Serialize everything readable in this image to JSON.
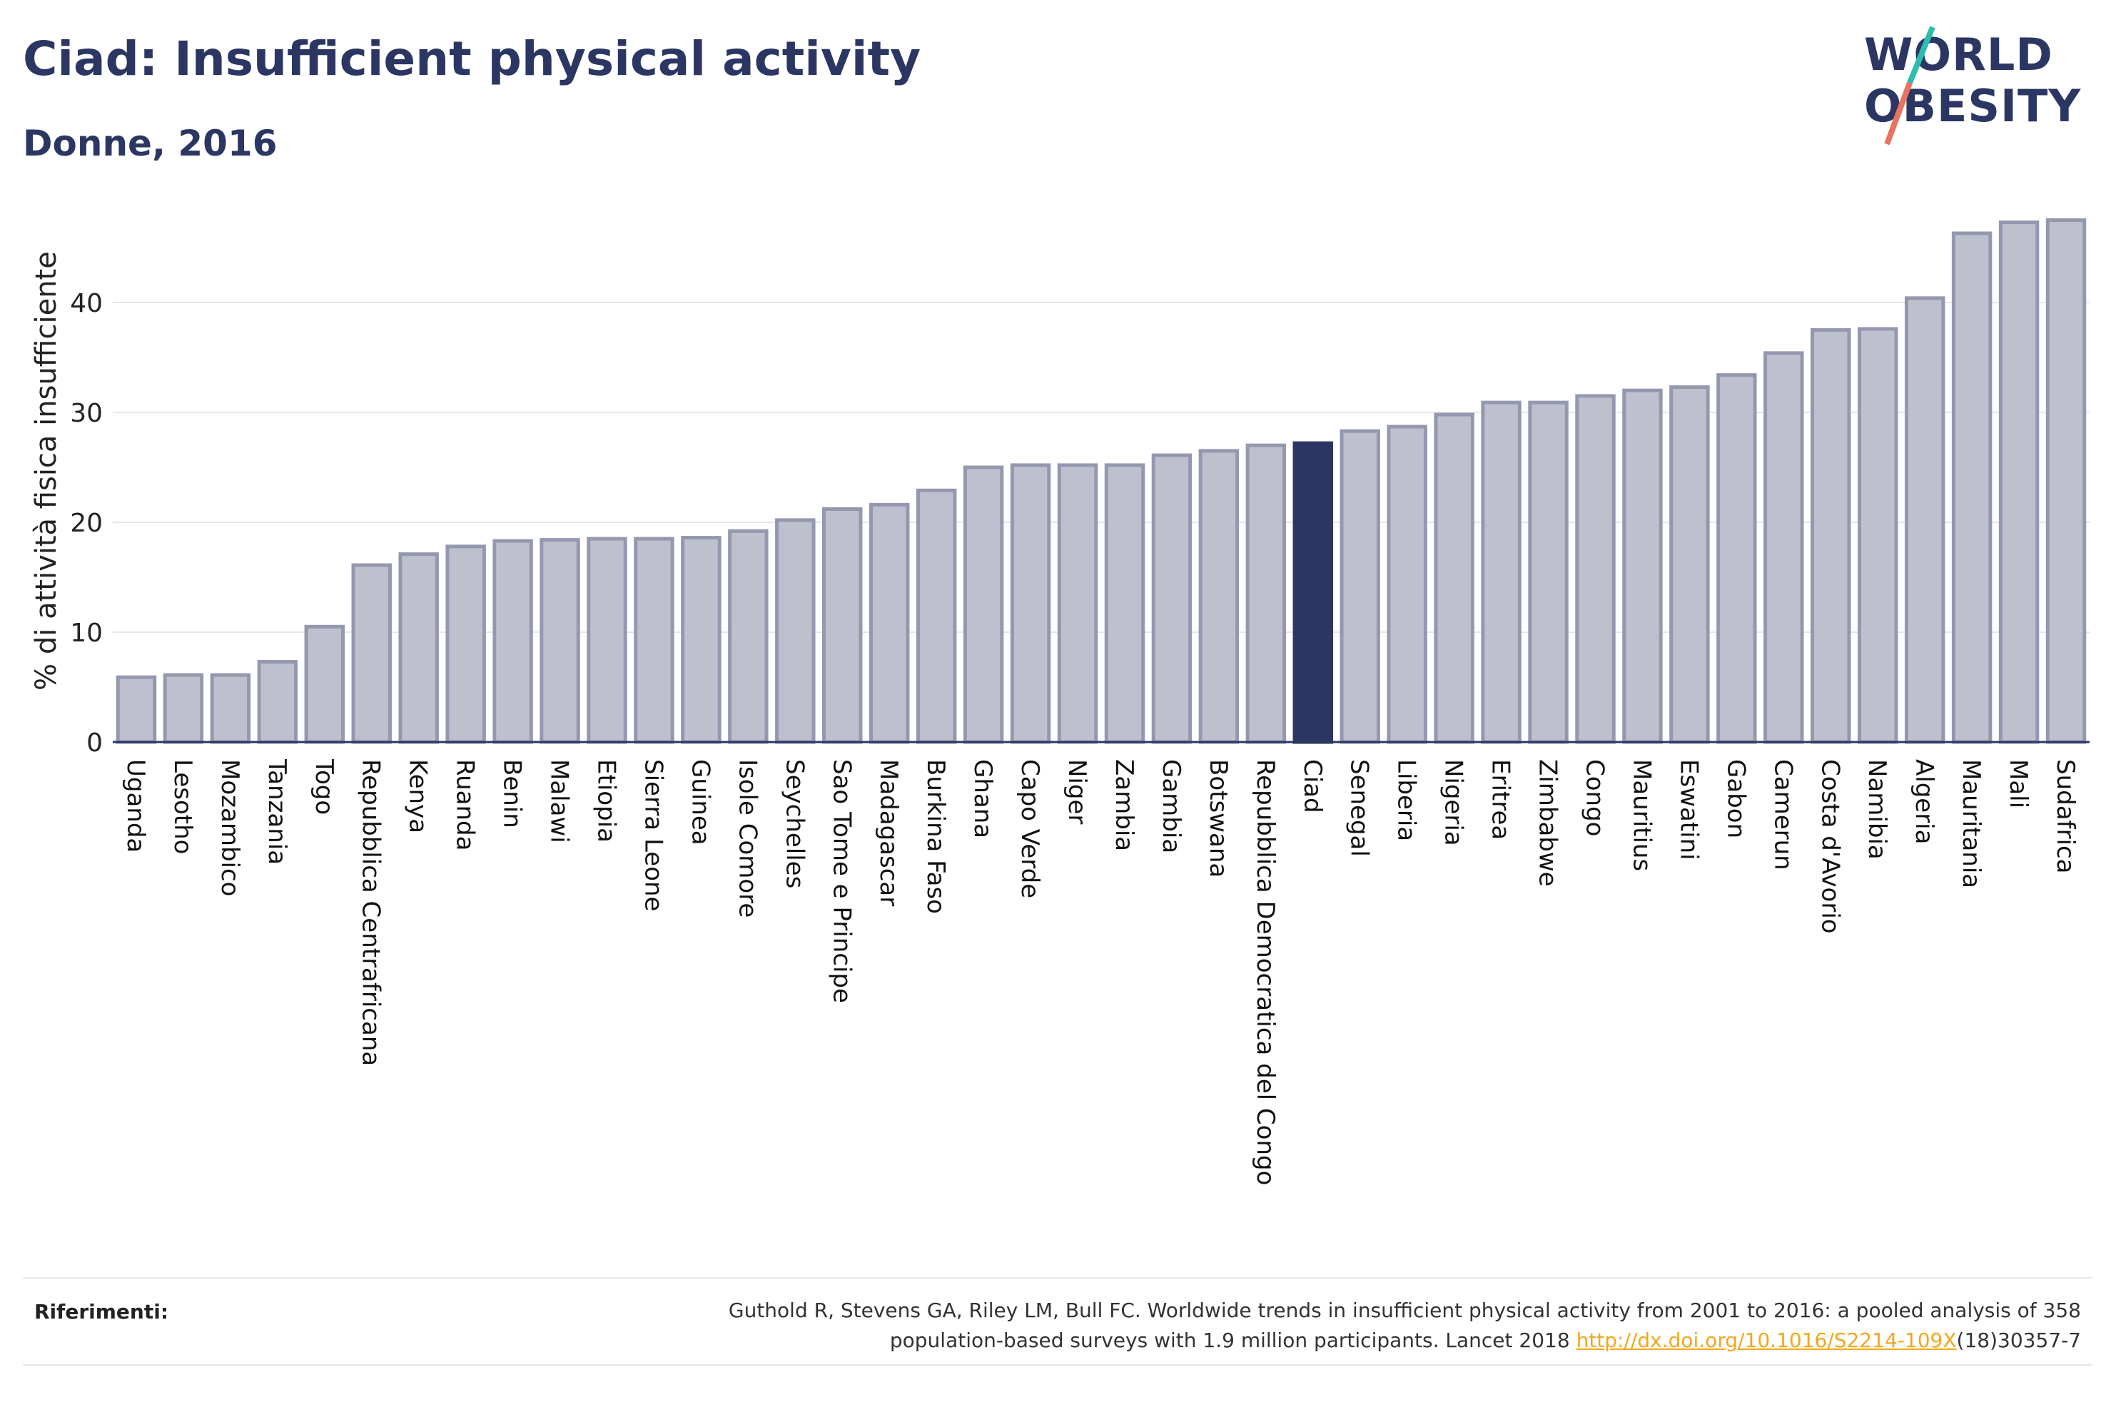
{
  "title": "Ciad: Insufficient physical activity",
  "subtitle": "Donne, 2016",
  "logo": {
    "line1": "WORLD",
    "line2": "OBESITY",
    "text_color": "#2b3663",
    "slash_top_color": "#2ebbb0",
    "slash_bottom_color": "#e8735f"
  },
  "colors": {
    "bar": "#bec1cd",
    "bar_stroke": "#9498af",
    "highlight": "#2b3663",
    "grid": "#e6e6ea",
    "axis": "#2b3663"
  },
  "chart_data": {
    "type": "bar",
    "title": "Ciad: Insufficient physical activity",
    "subtitle": "Donne, 2016",
    "ylabel": "% di attività fisica insufficiente",
    "xlabel": "",
    "ylim": [
      0,
      48
    ],
    "yticks": [
      0,
      10,
      20,
      30,
      40
    ],
    "grid": true,
    "highlight": "Ciad",
    "categories": [
      "Uganda",
      "Lesotho",
      "Mozambico",
      "Tanzania",
      "Togo",
      "Repubblica Centrafricana",
      "Kenya",
      "Ruanda",
      "Benin",
      "Malawi",
      "Etiopia",
      "Sierra Leone",
      "Guinea",
      "Isole Comore",
      "Seychelles",
      "Sao Tome e Principe",
      "Madagascar",
      "Burkina Faso",
      "Ghana",
      "Capo Verde",
      "Niger",
      "Zambia",
      "Gambia",
      "Botswana",
      "Repubblica Democratica del Congo",
      "Ciad",
      "Senegal",
      "Liberia",
      "Nigeria",
      "Eritrea",
      "Zimbabwe",
      "Congo",
      "Mauritius",
      "Eswatini",
      "Gabon",
      "Camerun",
      "Costa d'Avorio",
      "Namibia",
      "Algeria",
      "Mauritania",
      "Mali",
      "Sudafrica"
    ],
    "values": [
      5.9,
      6.1,
      6.1,
      7.3,
      10.5,
      16.1,
      17.1,
      17.8,
      18.3,
      18.4,
      18.5,
      18.5,
      18.6,
      19.2,
      20.2,
      21.2,
      21.6,
      22.9,
      25.0,
      25.2,
      25.2,
      25.2,
      26.1,
      26.5,
      27.0,
      27.2,
      28.3,
      28.7,
      29.8,
      30.9,
      30.9,
      31.5,
      32.0,
      32.3,
      33.4,
      35.4,
      37.5,
      37.6,
      40.4,
      46.3,
      47.3,
      47.5
    ]
  },
  "references": {
    "label": "Riferimenti:",
    "line1": "Guthold R, Stevens GA, Riley LM, Bull FC. Worldwide trends in insufficient physical activity from 2001 to 2016: a pooled analysis of 358",
    "line2_prefix": "population-based surveys with 1.9 million participants. Lancet 2018 ",
    "link": "http://dx.doi.org/10.1016/S2214-109X",
    "line2_suffix": "(18)30357-7"
  }
}
